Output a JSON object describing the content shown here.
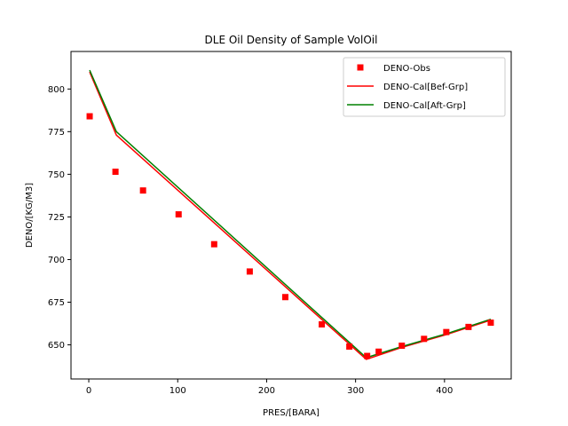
{
  "chart_data": {
    "type": "line",
    "title": "DLE Oil Density of Sample VolOil",
    "xlabel": "PRES/[BARA]",
    "ylabel": "DENO/[KG/M3]",
    "xlim": [
      -20,
      475
    ],
    "ylim": [
      630,
      822
    ],
    "xticks": [
      0,
      100,
      200,
      300,
      400
    ],
    "yticks": [
      650,
      675,
      700,
      725,
      750,
      775,
      800
    ],
    "xtick_labels": [
      "0",
      "100",
      "200",
      "300",
      "400"
    ],
    "ytick_labels": [
      "650",
      "675",
      "700",
      "725",
      "750",
      "775",
      "800"
    ],
    "grid": false,
    "legend_position": "top-right",
    "series": [
      {
        "name": "DENO-Obs",
        "kind": "marker",
        "marker": "square",
        "color": "#ff0000",
        "x": [
          1,
          30,
          61,
          101,
          141,
          181,
          221,
          262,
          293,
          313,
          326,
          352,
          377,
          402,
          427,
          452
        ],
        "y": [
          784,
          751.5,
          740.5,
          726.5,
          709,
          693,
          678,
          662,
          649,
          643.5,
          646,
          649.5,
          653.5,
          657.5,
          660.5,
          663
        ]
      },
      {
        "name": "DENO-Cal[Bef-Grp]",
        "kind": "line",
        "color": "#ff0000",
        "x": [
          1,
          31,
          312,
          352,
          402,
          452
        ],
        "y": [
          810,
          773,
          641.5,
          648.5,
          656,
          664.5
        ]
      },
      {
        "name": "DENO-Cal[Aft-Grp]",
        "kind": "line",
        "color": "#008000",
        "x": [
          1,
          31,
          312,
          352,
          402,
          452
        ],
        "y": [
          811,
          775,
          642.5,
          649,
          656.5,
          665
        ]
      }
    ]
  }
}
